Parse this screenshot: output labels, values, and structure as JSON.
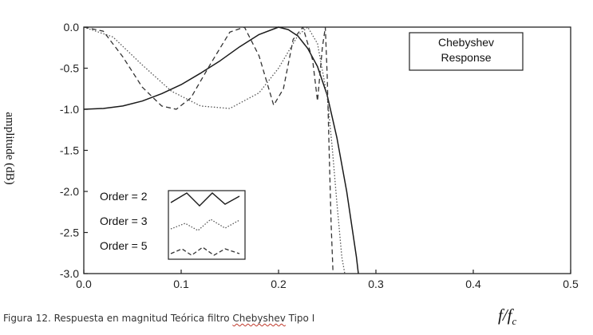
{
  "chart_data": {
    "type": "line",
    "title": "",
    "ylabel": "Amplitude (dB)",
    "xlabel": "f/fc",
    "xlim": [
      0,
      0.5
    ],
    "ylim": [
      -3.0,
      0.0
    ],
    "x_ticks": [
      "0.0",
      "0.1",
      "0.2",
      "0.3",
      "0.4",
      "0.5"
    ],
    "y_ticks": [
      "0.0",
      "-0.5",
      "-1.0",
      "-1.5",
      "-2.0",
      "-2.5",
      "-3.0"
    ],
    "annotation": [
      "Chebyshev",
      "Response"
    ],
    "legend_position": "bottom-left",
    "series": [
      {
        "name": "Order = 2",
        "style": "solid",
        "color": "#1a1a1a",
        "x": [
          0.0,
          0.02,
          0.04,
          0.06,
          0.08,
          0.1,
          0.12,
          0.14,
          0.16,
          0.18,
          0.2,
          0.21,
          0.22,
          0.23,
          0.24,
          0.25,
          0.26,
          0.27,
          0.28,
          0.282
        ],
        "y": [
          -1.0,
          -0.99,
          -0.96,
          -0.9,
          -0.81,
          -0.7,
          -0.56,
          -0.41,
          -0.24,
          -0.09,
          0.0,
          -0.03,
          -0.11,
          -0.26,
          -0.48,
          -0.83,
          -1.35,
          -2.0,
          -2.8,
          -3.0
        ]
      },
      {
        "name": "Order = 3",
        "style": "dotted",
        "color": "#555555",
        "x": [
          0.0,
          0.03,
          0.06,
          0.09,
          0.12,
          0.15,
          0.18,
          0.2,
          0.22,
          0.23,
          0.24,
          0.25,
          0.255,
          0.26,
          0.265,
          0.268
        ],
        "y": [
          0.0,
          -0.12,
          -0.46,
          -0.78,
          -0.96,
          -0.99,
          -0.8,
          -0.5,
          -0.1,
          0.0,
          -0.2,
          -0.85,
          -1.45,
          -2.15,
          -2.8,
          -3.0
        ]
      },
      {
        "name": "Order = 5",
        "style": "dashed",
        "color": "#333333",
        "x": [
          0.0,
          0.02,
          0.04,
          0.06,
          0.08,
          0.095,
          0.11,
          0.13,
          0.15,
          0.165,
          0.18,
          0.195,
          0.205,
          0.215,
          0.225,
          0.235,
          0.24,
          0.245,
          0.248,
          0.25,
          0.252,
          0.254,
          0.256
        ],
        "y": [
          0.0,
          -0.05,
          -0.36,
          -0.73,
          -0.96,
          -1.0,
          -0.86,
          -0.45,
          -0.06,
          0.0,
          -0.35,
          -0.95,
          -0.75,
          -0.15,
          0.0,
          -0.4,
          -0.9,
          -0.25,
          0.0,
          -0.6,
          -1.5,
          -2.4,
          -3.0
        ]
      }
    ]
  },
  "caption": {
    "prefix": "Figura 12. Respuesta en magnitud Teórica filtro ",
    "underlined": "Chebyshev",
    "suffix": " Tipo I"
  },
  "x_unit": {
    "base": "f/f",
    "sub": "c"
  },
  "ylabel_display": "amplitude (dB)",
  "colors": {
    "axis": "#222222",
    "background": "#ffffff"
  }
}
